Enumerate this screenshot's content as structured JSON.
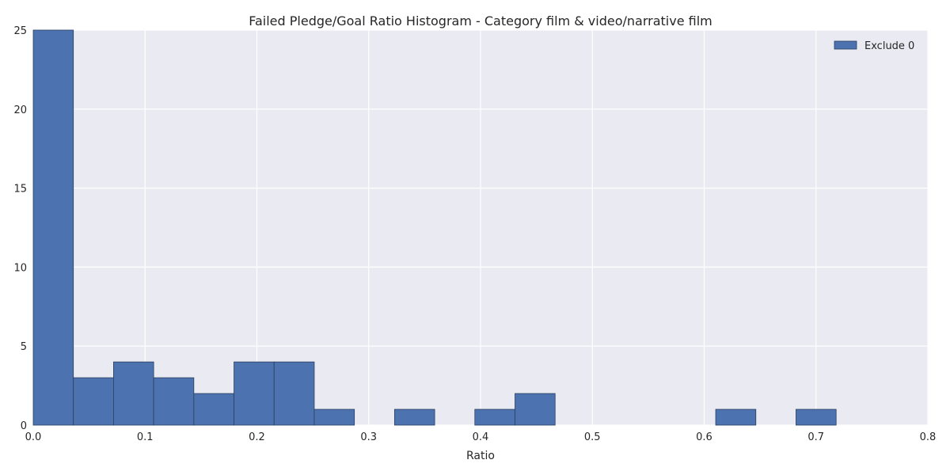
{
  "chart_data": {
    "type": "bar",
    "title": "Failed Pledge/Goal Ratio Histogram - Category film & video/narrative film",
    "xlabel": "Ratio",
    "ylabel": "",
    "xlim": [
      0.0,
      0.8
    ],
    "ylim": [
      0,
      25
    ],
    "xticks": [
      "0.0",
      "0.1",
      "0.2",
      "0.3",
      "0.4",
      "0.5",
      "0.6",
      "0.7",
      "0.8"
    ],
    "yticks": [
      "0",
      "5",
      "10",
      "15",
      "20",
      "25"
    ],
    "grid": true,
    "legend_position": "top-right",
    "bin_edges": [
      0.0,
      0.0359,
      0.0718,
      0.1077,
      0.1436,
      0.1795,
      0.2154,
      0.2513,
      0.2872,
      0.3231,
      0.359,
      0.3949,
      0.4308,
      0.4667,
      0.5026,
      0.5385,
      0.5744,
      0.6103,
      0.6462,
      0.6821,
      0.718
    ],
    "series": [
      {
        "name": "Exclude 0",
        "counts": [
          25,
          3,
          4,
          3,
          2,
          4,
          4,
          1,
          0,
          1,
          0,
          1,
          2,
          0,
          0,
          0,
          0,
          1,
          0,
          1
        ]
      }
    ],
    "colors": {
      "bar": "#4c72b0",
      "bar_edge": "#2a3f5f",
      "background": "#eaeaf2",
      "grid": "#ffffff"
    }
  }
}
